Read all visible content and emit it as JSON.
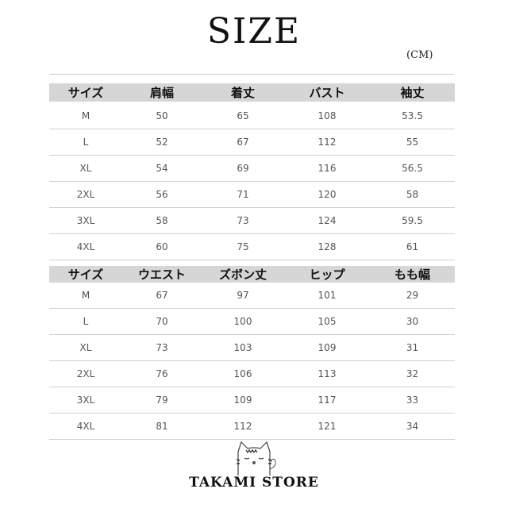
{
  "title": "SIZE",
  "unit": "(CM)",
  "tops_table": {
    "headers": [
      "サイズ",
      "肩幅",
      "着丈",
      "バスト",
      "袖丈"
    ],
    "rows": [
      [
        "M",
        "50",
        "65",
        "108",
        "53.5"
      ],
      [
        "L",
        "52",
        "67",
        "112",
        "55"
      ],
      [
        "XL",
        "54",
        "69",
        "116",
        "56.5"
      ],
      [
        "2XL",
        "56",
        "71",
        "120",
        "58"
      ],
      [
        "3XL",
        "58",
        "73",
        "124",
        "59.5"
      ],
      [
        "4XL",
        "60",
        "75",
        "128",
        "61"
      ]
    ]
  },
  "pants_table": {
    "headers": [
      "サイズ",
      "ウエスト",
      "ズボン丈",
      "ヒップ",
      "もも幅"
    ],
    "rows": [
      [
        "M",
        "67",
        "97",
        "101",
        "29"
      ],
      [
        "L",
        "70",
        "100",
        "105",
        "30"
      ],
      [
        "XL",
        "73",
        "103",
        "109",
        "31"
      ],
      [
        "2XL",
        "76",
        "106",
        "113",
        "32"
      ],
      [
        "3XL",
        "79",
        "109",
        "117",
        "33"
      ],
      [
        "4XL",
        "81",
        "112",
        "121",
        "34"
      ]
    ]
  },
  "logo": {
    "text": "TAKAMI STORE",
    "icon": "cat-icon"
  },
  "colors": {
    "header_band": "#d6d6d6",
    "divider": "#d0d0d0"
  }
}
